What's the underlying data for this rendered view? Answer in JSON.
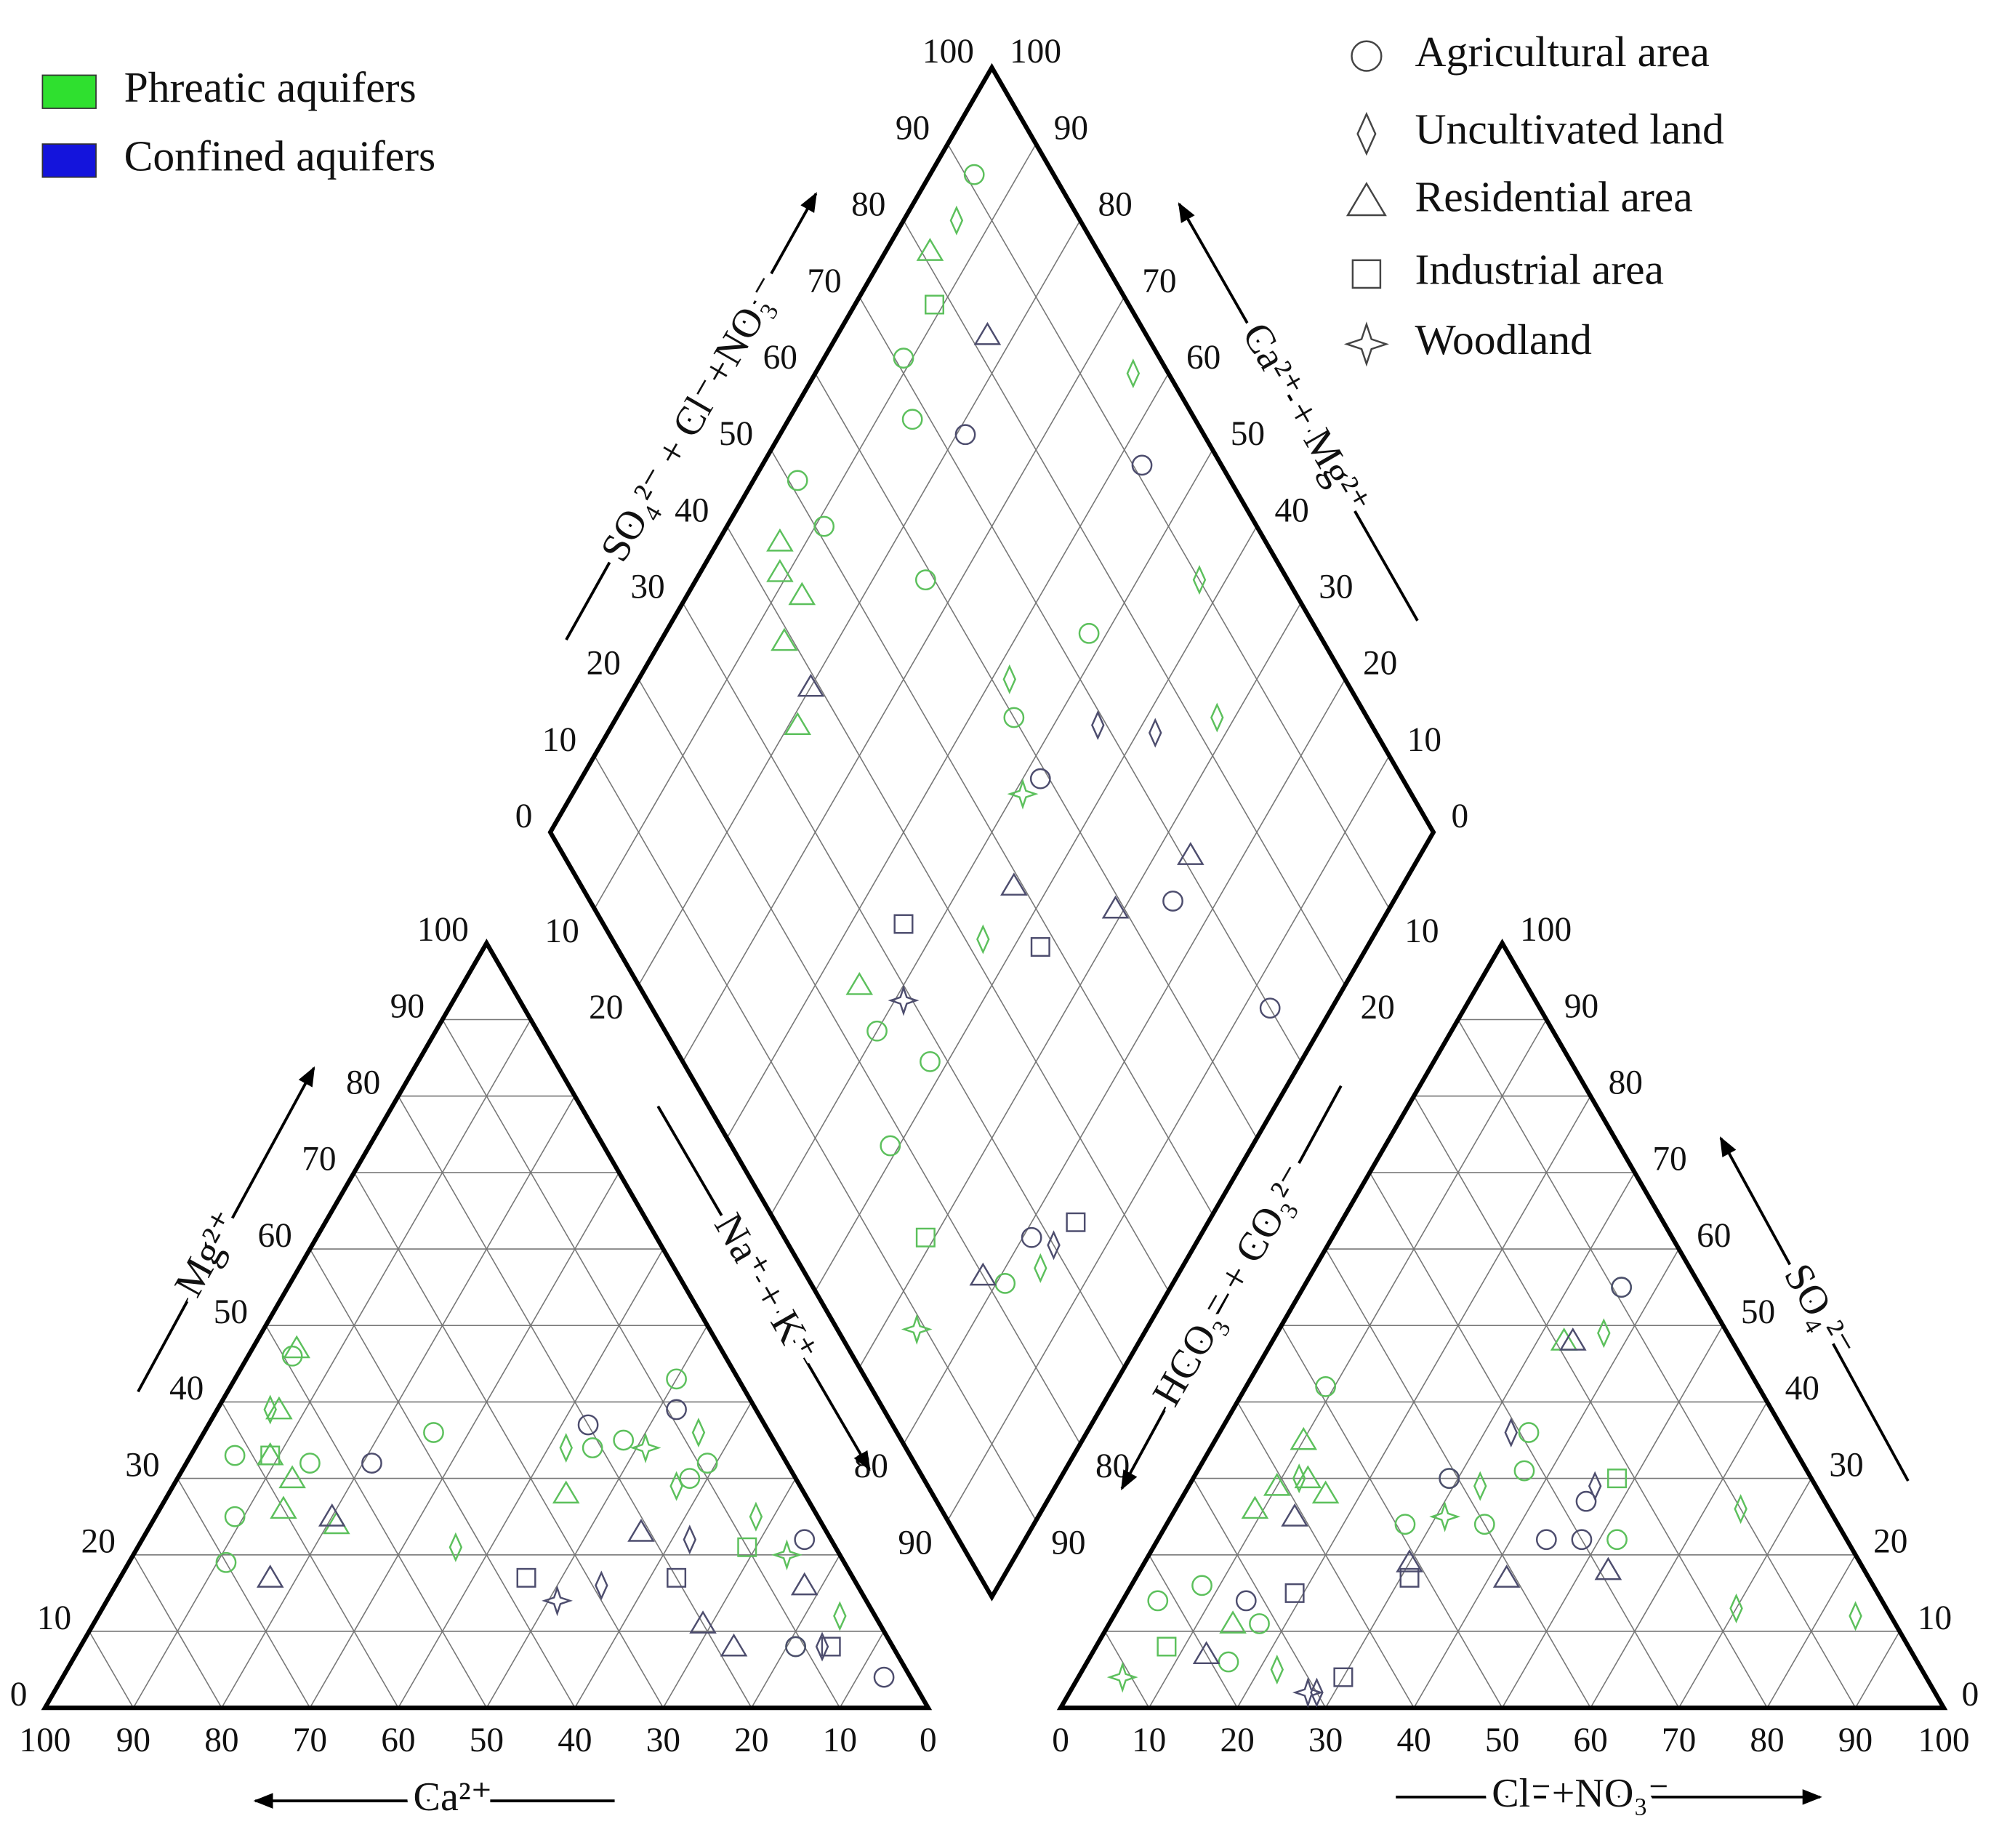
{
  "chart_data": {
    "type": "piper",
    "ticks": [
      0,
      10,
      20,
      30,
      40,
      50,
      60,
      70,
      80,
      90,
      100
    ],
    "na_k_ticks": [
      10,
      20,
      80,
      90
    ],
    "hco3_ticks": [
      10,
      20,
      80,
      90
    ],
    "axes": {
      "cation_left": "Mg²⁺",
      "cation_bottom": "Ca²⁺",
      "anion_right": "SO₄²⁻",
      "anion_bottom": "Cl⁻+NO₃⁻",
      "diamond_upper_left": "SO₄²⁻ + Cl⁻+NO₃⁻",
      "diamond_upper_right": "Ca²⁺ + Mg²⁺",
      "diamond_lower_left": "Na⁺ + K⁺",
      "diamond_lower_right": "HCO₃⁻ + CO₃²⁻"
    },
    "markers": [
      {
        "name": "Agricultural area",
        "shape": "circle"
      },
      {
        "name": "Uncultivated land",
        "shape": "diamond"
      },
      {
        "name": "Residential area",
        "shape": "triangle"
      },
      {
        "name": "Industrial area",
        "shape": "square"
      },
      {
        "name": "Woodland",
        "shape": "star"
      }
    ],
    "series": [
      {
        "name": "Phreatic aquifers",
        "color": "#2fe02f",
        "point_color": "#5cc05c",
        "groups": [
          {
            "Ca": [
              49,
              62,
              66,
              54,
              38,
              70,
              21,
              17,
              7,
              9,
              12,
              11
            ],
            "Mg": [
              46,
              33,
              25,
              32,
              36,
              19,
              34,
              35,
              43,
              32,
              30,
              8
            ],
            "Cl": [
              36,
              9,
              35,
              37,
              29,
              27,
              36,
              52,
              8,
              4,
              17,
              16
            ],
            "SO4": [
              55,
              42,
              36,
              31,
              30,
              24,
              24,
              22,
              16,
              14,
              11,
              6
            ]
          },
          {
            "Ca": [
              55,
              24,
              8,
              14,
              7,
              43,
              4
            ],
            "Mg": [
              39,
              34,
              36,
              29,
              25,
              21,
              12
            ],
            "Cl": [
              37,
              33,
              12,
              64,
              70,
              84,
              22
            ],
            "SO4": [
              49,
              29,
              30,
              26,
              13,
              12,
              5
            ]
          },
          {
            "Ca": [
              48,
              54,
              58,
              57,
              60,
              55,
              27
            ],
            "Mg": [
              47,
              39,
              33,
              30,
              26,
              24,
              28
            ],
            "Cl": [
              33,
              10,
              13,
              16,
              10,
              9,
              14
            ],
            "SO4": [
              48,
              35,
              30,
              28,
              29,
              26,
              11
            ]
          },
          {
            "Ca": [
              58,
              10
            ],
            "Mg": [
              33,
              21
            ],
            "Cl": [
              48,
              8
            ],
            "SO4": [
              30,
              8
            ]
          },
          {
            "Ca": [
              15,
              6
            ],
            "Mg": [
              34,
              20
            ],
            "Cl": [
              31,
              5
            ],
            "SO4": [
              25,
              4
            ]
          }
        ]
      },
      {
        "name": "Confined aquifers",
        "color": "#1414dc",
        "point_color": "#4d4d6e",
        "groups": [
          {
            "Ca": [
              20,
              9,
              47,
              3,
              3,
              11
            ],
            "Mg": [
              37,
              39,
              32,
              22,
              4,
              8
            ],
            "Cl": [
              36,
              29,
              46,
              44,
              48,
              14
            ],
            "SO4": [
              55,
              30,
              27,
              22,
              22,
              14
            ]
          },
          {
            "Ca": [
              29,
              16,
              8
            ],
            "Mg": [
              16,
              22,
              8
            ],
            "Cl": [
              33,
              46,
              28
            ],
            "SO4": [
              36,
              29,
              2
            ]
          },
          {
            "Ca": [
              66,
              55,
              21,
              20,
              18,
              6
            ],
            "Mg": [
              17,
              25,
              23,
              11,
              8,
              16
            ],
            "Cl": [
              34,
              14,
              30,
              42,
              53,
              13
            ],
            "SO4": [
              48,
              25,
              19,
              17,
              18,
              7
            ]
          },
          {
            "Ca": [
              37,
              20,
              7
            ],
            "Mg": [
              17,
              17,
              8
            ],
            "Cl": [
              19,
              31,
              30
            ],
            "SO4": [
              15,
              17,
              4
            ]
          },
          {
            "Ca": [
              35
            ],
            "Mg": [
              14
            ],
            "Cl": [
              27
            ],
            "SO4": [
              2
            ]
          }
        ]
      }
    ]
  }
}
